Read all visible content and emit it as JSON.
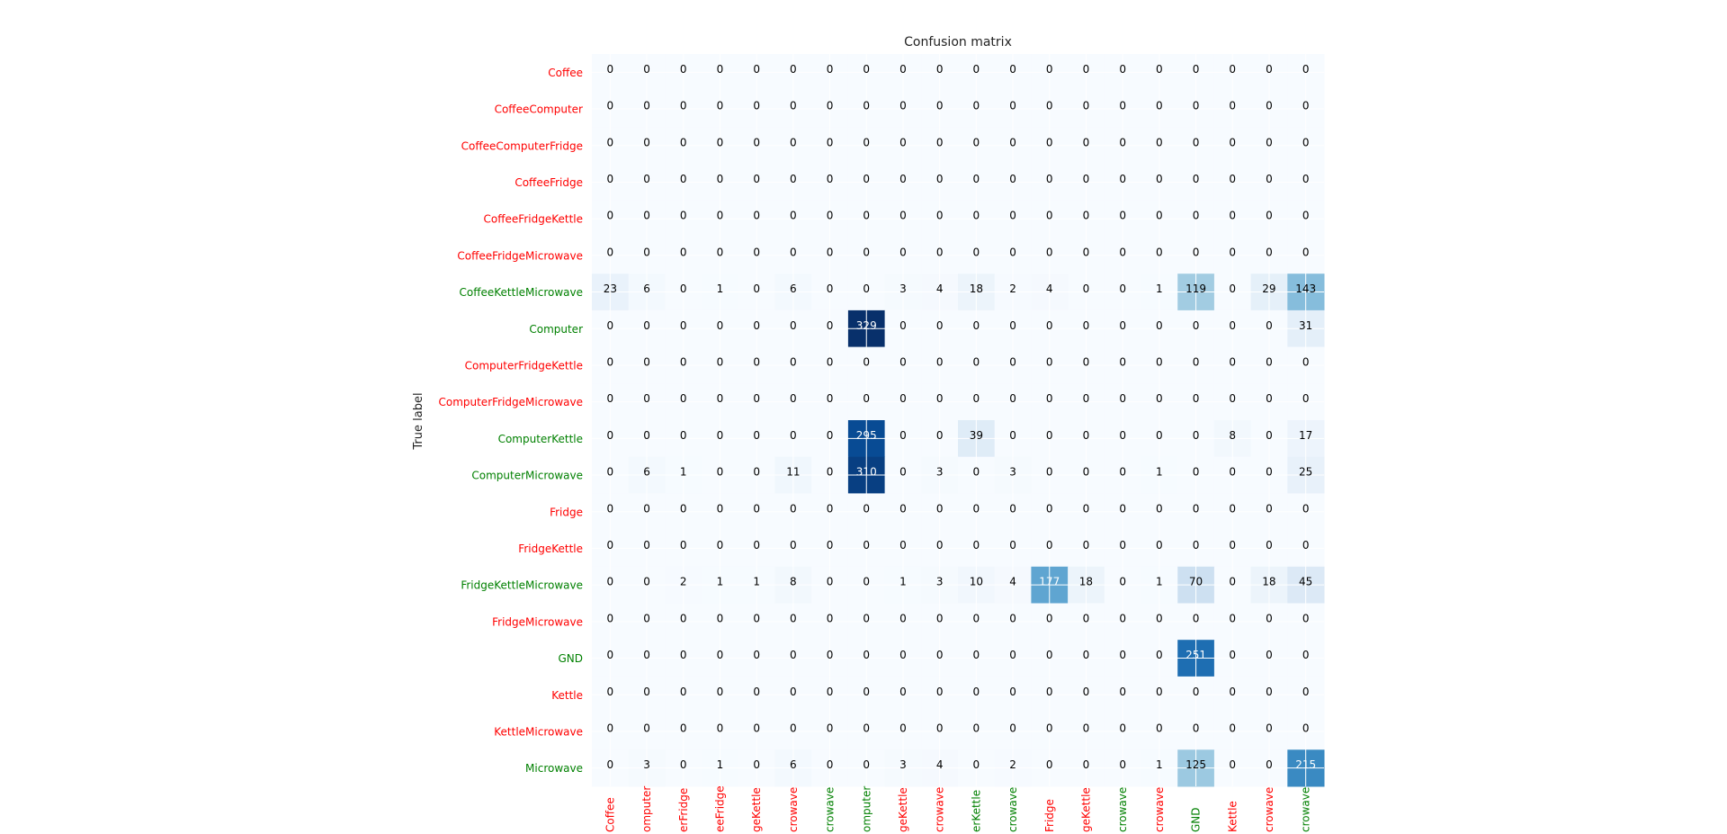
{
  "chart_data": {
    "type": "heatmap",
    "title": "Confusion matrix",
    "ylabel": "True label",
    "xlabel": "",
    "colormap": "Blues",
    "colors": {
      "label_present": "#008000",
      "label_absent": "#ff0000"
    },
    "row_labels": [
      "Coffee",
      "CoffeeComputer",
      "CoffeeComputerFridge",
      "CoffeeFridge",
      "CoffeeFridgeKettle",
      "CoffeeFridgeMicrowave",
      "CoffeeKettleMicrowave",
      "Computer",
      "ComputerFridgeKettle",
      "ComputerFridgeMicrowave",
      "ComputerKettle",
      "ComputerMicrowave",
      "Fridge",
      "FridgeKettle",
      "FridgeKettleMicrowave",
      "FridgeMicrowave",
      "GND",
      "Kettle",
      "KettleMicrowave",
      "Microwave"
    ],
    "row_label_status": [
      "absent",
      "absent",
      "absent",
      "absent",
      "absent",
      "absent",
      "present",
      "present",
      "absent",
      "absent",
      "present",
      "present",
      "absent",
      "absent",
      "present",
      "absent",
      "present",
      "absent",
      "absent",
      "present"
    ],
    "col_labels_visible": [
      "Coffee",
      "omputer",
      "erFridge",
      "eeFridge",
      "geKettle",
      "crowave",
      "crowave",
      "omputer",
      "geKettle",
      "crowave",
      "erKettle",
      "crowave",
      "Fridge",
      "geKettle",
      "crowave",
      "crowave",
      "GND",
      "Kettle",
      "crowave",
      "crowave"
    ],
    "col_label_status": [
      "absent",
      "absent",
      "absent",
      "absent",
      "absent",
      "absent",
      "present",
      "present",
      "absent",
      "absent",
      "present",
      "present",
      "absent",
      "absent",
      "present",
      "absent",
      "present",
      "absent",
      "absent",
      "present"
    ],
    "matrix": [
      [
        0,
        0,
        0,
        0,
        0,
        0,
        0,
        0,
        0,
        0,
        0,
        0,
        0,
        0,
        0,
        0,
        0,
        0,
        0,
        0
      ],
      [
        0,
        0,
        0,
        0,
        0,
        0,
        0,
        0,
        0,
        0,
        0,
        0,
        0,
        0,
        0,
        0,
        0,
        0,
        0,
        0
      ],
      [
        0,
        0,
        0,
        0,
        0,
        0,
        0,
        0,
        0,
        0,
        0,
        0,
        0,
        0,
        0,
        0,
        0,
        0,
        0,
        0
      ],
      [
        0,
        0,
        0,
        0,
        0,
        0,
        0,
        0,
        0,
        0,
        0,
        0,
        0,
        0,
        0,
        0,
        0,
        0,
        0,
        0
      ],
      [
        0,
        0,
        0,
        0,
        0,
        0,
        0,
        0,
        0,
        0,
        0,
        0,
        0,
        0,
        0,
        0,
        0,
        0,
        0,
        0
      ],
      [
        0,
        0,
        0,
        0,
        0,
        0,
        0,
        0,
        0,
        0,
        0,
        0,
        0,
        0,
        0,
        0,
        0,
        0,
        0,
        0
      ],
      [
        23,
        6,
        0,
        1,
        0,
        6,
        0,
        0,
        3,
        4,
        18,
        2,
        4,
        0,
        0,
        1,
        119,
        0,
        29,
        143
      ],
      [
        0,
        0,
        0,
        0,
        0,
        0,
        0,
        329,
        0,
        0,
        0,
        0,
        0,
        0,
        0,
        0,
        0,
        0,
        0,
        31
      ],
      [
        0,
        0,
        0,
        0,
        0,
        0,
        0,
        0,
        0,
        0,
        0,
        0,
        0,
        0,
        0,
        0,
        0,
        0,
        0,
        0
      ],
      [
        0,
        0,
        0,
        0,
        0,
        0,
        0,
        0,
        0,
        0,
        0,
        0,
        0,
        0,
        0,
        0,
        0,
        0,
        0,
        0
      ],
      [
        0,
        0,
        0,
        0,
        0,
        0,
        0,
        295,
        0,
        0,
        39,
        0,
        0,
        0,
        0,
        0,
        0,
        8,
        0,
        17
      ],
      [
        0,
        6,
        1,
        0,
        0,
        11,
        0,
        310,
        0,
        3,
        0,
        3,
        0,
        0,
        0,
        1,
        0,
        0,
        0,
        25
      ],
      [
        0,
        0,
        0,
        0,
        0,
        0,
        0,
        0,
        0,
        0,
        0,
        0,
        0,
        0,
        0,
        0,
        0,
        0,
        0,
        0
      ],
      [
        0,
        0,
        0,
        0,
        0,
        0,
        0,
        0,
        0,
        0,
        0,
        0,
        0,
        0,
        0,
        0,
        0,
        0,
        0,
        0
      ],
      [
        0,
        0,
        2,
        1,
        1,
        8,
        0,
        0,
        1,
        3,
        10,
        4,
        177,
        18,
        0,
        1,
        70,
        0,
        18,
        45
      ],
      [
        0,
        0,
        0,
        0,
        0,
        0,
        0,
        0,
        0,
        0,
        0,
        0,
        0,
        0,
        0,
        0,
        0,
        0,
        0,
        0
      ],
      [
        0,
        0,
        0,
        0,
        0,
        0,
        0,
        0,
        0,
        0,
        0,
        0,
        0,
        0,
        0,
        0,
        251,
        0,
        0,
        0
      ],
      [
        0,
        0,
        0,
        0,
        0,
        0,
        0,
        0,
        0,
        0,
        0,
        0,
        0,
        0,
        0,
        0,
        0,
        0,
        0,
        0
      ],
      [
        0,
        0,
        0,
        0,
        0,
        0,
        0,
        0,
        0,
        0,
        0,
        0,
        0,
        0,
        0,
        0,
        0,
        0,
        0,
        0
      ],
      [
        0,
        3,
        0,
        1,
        0,
        6,
        0,
        0,
        3,
        4,
        0,
        2,
        0,
        0,
        0,
        1,
        125,
        0,
        0,
        215
      ]
    ],
    "vmin": 0,
    "vmax": 329,
    "grid": true
  }
}
